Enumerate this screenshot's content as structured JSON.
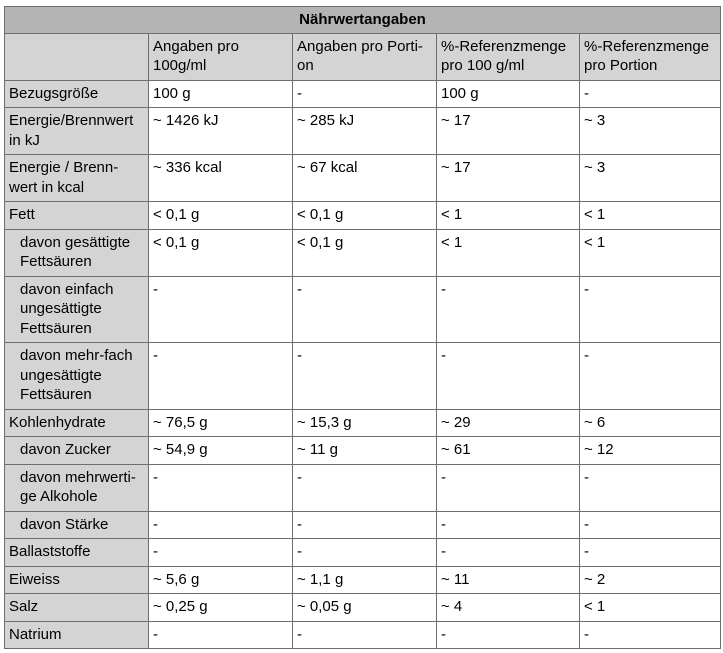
{
  "table": {
    "title": "Nährwertangaben",
    "headers": [
      "",
      "Angaben pro 100g/ml",
      "Angaben pro Porti-on",
      "%-Referenzmenge pro 100 g/ml",
      "%-Referenzmenge pro Portion"
    ],
    "rows": [
      {
        "label": "Bezugsgröße",
        "indent": false,
        "values": [
          "100 g",
          "-",
          "100 g",
          "-"
        ]
      },
      {
        "label": "Energie/Brennwert in kJ",
        "indent": false,
        "values": [
          "~ 1426 kJ",
          "~ 285 kJ",
          "~ 17",
          "~ 3"
        ]
      },
      {
        "label": "Energie / Brenn-wert in kcal",
        "indent": false,
        "values": [
          "~ 336 kcal",
          "~ 67 kcal",
          "~ 17",
          "~ 3"
        ]
      },
      {
        "label": "Fett",
        "indent": false,
        "values": [
          "< 0,1 g",
          "< 0,1 g",
          "< 1",
          "< 1"
        ]
      },
      {
        "label": "davon gesättigte Fettsäuren",
        "indent": true,
        "values": [
          "< 0,1 g",
          "< 0,1 g",
          "< 1",
          "< 1"
        ]
      },
      {
        "label": "davon einfach ungesättigte Fettsäuren",
        "indent": true,
        "values": [
          "-",
          "-",
          "-",
          "-"
        ]
      },
      {
        "label": "davon mehr-fach ungesättigte Fettsäuren",
        "indent": true,
        "values": [
          "-",
          "-",
          "-",
          "-"
        ]
      },
      {
        "label": "Kohlenhydrate",
        "indent": false,
        "values": [
          "~ 76,5 g",
          "~ 15,3 g",
          "~ 29",
          "~ 6"
        ]
      },
      {
        "label": "davon Zucker",
        "indent": true,
        "values": [
          "~ 54,9 g",
          "~ 11 g",
          "~ 61",
          "~ 12"
        ]
      },
      {
        "label": "davon mehrwerti-ge Alkohole",
        "indent": true,
        "values": [
          "-",
          "-",
          "-",
          "-"
        ]
      },
      {
        "label": "davon Stärke",
        "indent": true,
        "values": [
          "-",
          "-",
          "-",
          "-"
        ]
      },
      {
        "label": "Ballaststoffe",
        "indent": false,
        "values": [
          "-",
          "-",
          "-",
          "-"
        ]
      },
      {
        "label": "Eiweiss",
        "indent": false,
        "values": [
          "~ 5,6 g",
          "~ 1,1 g",
          "~ 11",
          "~ 2"
        ]
      },
      {
        "label": "Salz",
        "indent": false,
        "values": [
          "~ 0,25 g",
          "~ 0,05 g",
          "~ 4",
          "< 1"
        ]
      },
      {
        "label": "Natrium",
        "indent": false,
        "values": [
          "-",
          "-",
          "-",
          "-"
        ]
      }
    ]
  }
}
